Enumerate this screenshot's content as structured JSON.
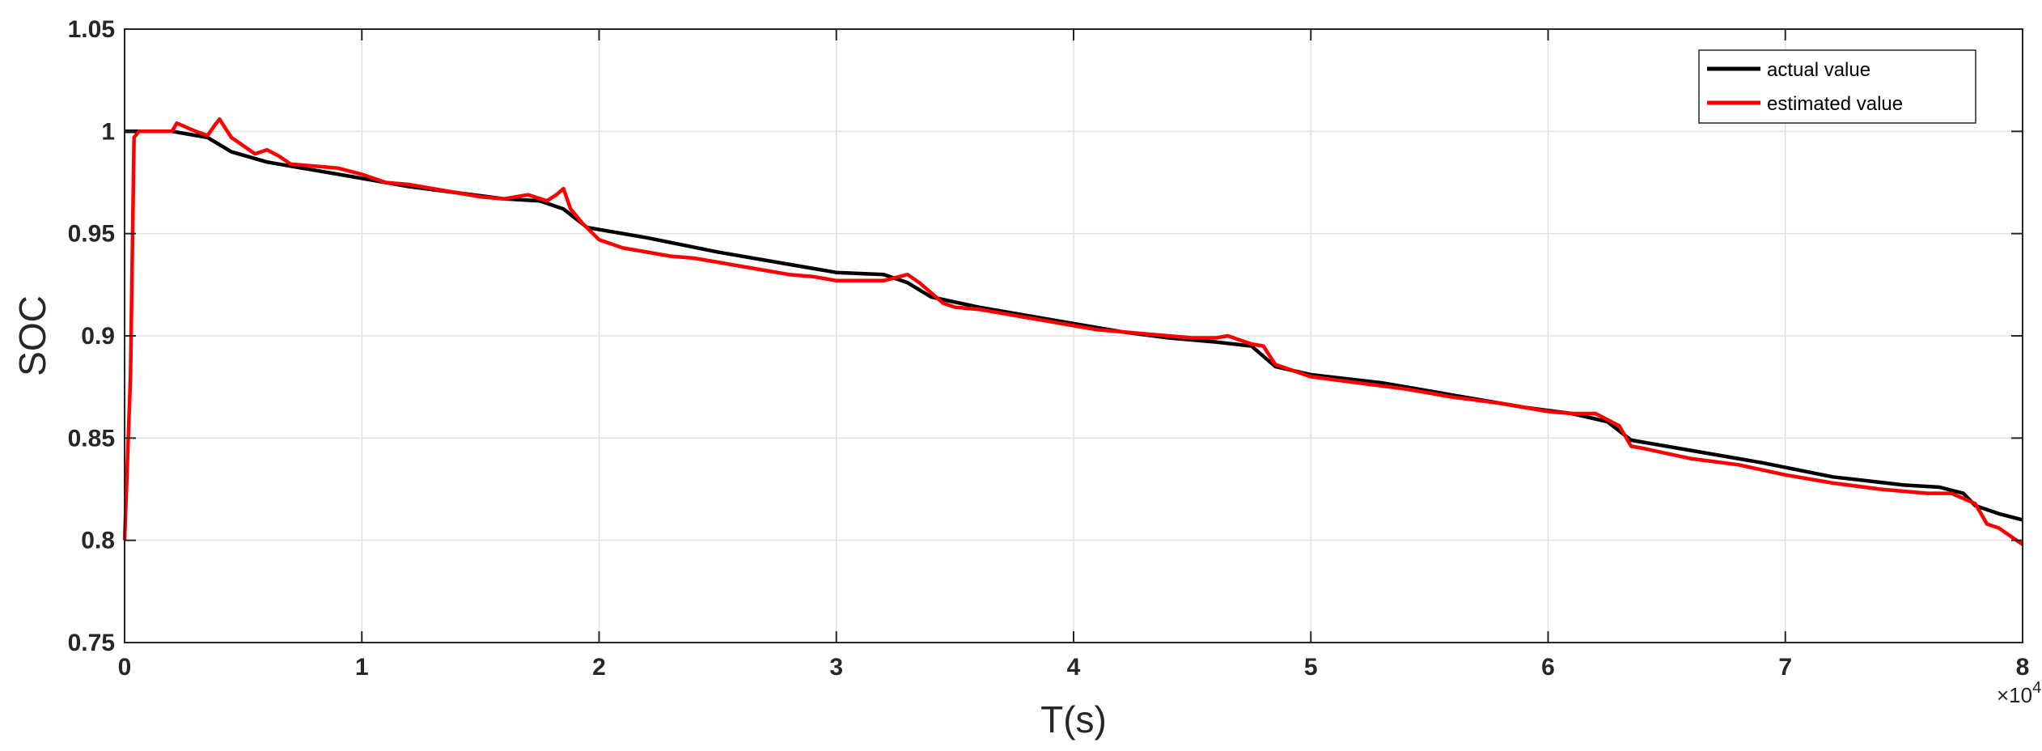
{
  "chart_data": {
    "type": "line",
    "xlabel": "T(s)",
    "ylabel": "SOC",
    "x_exponent_base": "×10",
    "x_exponent_power": "4",
    "xlim": [
      0,
      8
    ],
    "ylim": [
      0.75,
      1.05
    ],
    "x_ticks": [
      "0",
      "1",
      "2",
      "3",
      "4",
      "5",
      "6",
      "7",
      "8"
    ],
    "y_ticks": [
      "0.75",
      "0.8",
      "0.85",
      "0.9",
      "0.95",
      "1",
      "1.05"
    ],
    "grid": true,
    "legend_position": "top-right",
    "series": [
      {
        "name": "actual value",
        "color": "#000000",
        "points": [
          [
            0,
            1.0
          ],
          [
            0.2,
            1.0
          ],
          [
            0.3,
            0.998
          ],
          [
            0.35,
            0.997
          ],
          [
            0.45,
            0.99
          ],
          [
            0.6,
            0.985
          ],
          [
            0.8,
            0.981
          ],
          [
            1.0,
            0.977
          ],
          [
            1.2,
            0.973
          ],
          [
            1.4,
            0.97
          ],
          [
            1.6,
            0.967
          ],
          [
            1.75,
            0.966
          ],
          [
            1.85,
            0.962
          ],
          [
            1.95,
            0.953
          ],
          [
            2.2,
            0.948
          ],
          [
            2.5,
            0.941
          ],
          [
            2.8,
            0.935
          ],
          [
            3.0,
            0.931
          ],
          [
            3.2,
            0.93
          ],
          [
            3.3,
            0.926
          ],
          [
            3.4,
            0.919
          ],
          [
            3.6,
            0.914
          ],
          [
            3.8,
            0.91
          ],
          [
            4.0,
            0.906
          ],
          [
            4.2,
            0.902
          ],
          [
            4.4,
            0.899
          ],
          [
            4.6,
            0.897
          ],
          [
            4.75,
            0.895
          ],
          [
            4.85,
            0.885
          ],
          [
            5.0,
            0.881
          ],
          [
            5.3,
            0.877
          ],
          [
            5.6,
            0.871
          ],
          [
            5.9,
            0.865
          ],
          [
            6.1,
            0.862
          ],
          [
            6.25,
            0.858
          ],
          [
            6.35,
            0.849
          ],
          [
            6.6,
            0.844
          ],
          [
            6.9,
            0.838
          ],
          [
            7.2,
            0.831
          ],
          [
            7.5,
            0.827
          ],
          [
            7.65,
            0.826
          ],
          [
            7.75,
            0.823
          ],
          [
            7.8,
            0.817
          ],
          [
            7.9,
            0.813
          ],
          [
            8.0,
            0.81
          ]
        ]
      },
      {
        "name": "estimated value",
        "color": "#ff0000",
        "points": [
          [
            0,
            0.8
          ],
          [
            0.025,
            0.88
          ],
          [
            0.04,
            0.997
          ],
          [
            0.06,
            1.0
          ],
          [
            0.2,
            1.0
          ],
          [
            0.22,
            1.004
          ],
          [
            0.3,
            1.0
          ],
          [
            0.35,
            0.998
          ],
          [
            0.38,
            1.003
          ],
          [
            0.4,
            1.006
          ],
          [
            0.45,
            0.997
          ],
          [
            0.5,
            0.993
          ],
          [
            0.55,
            0.989
          ],
          [
            0.6,
            0.991
          ],
          [
            0.65,
            0.988
          ],
          [
            0.7,
            0.984
          ],
          [
            0.8,
            0.983
          ],
          [
            0.9,
            0.982
          ],
          [
            1.0,
            0.979
          ],
          [
            1.1,
            0.975
          ],
          [
            1.2,
            0.974
          ],
          [
            1.3,
            0.972
          ],
          [
            1.4,
            0.97
          ],
          [
            1.5,
            0.968
          ],
          [
            1.6,
            0.967
          ],
          [
            1.7,
            0.969
          ],
          [
            1.78,
            0.966
          ],
          [
            1.82,
            0.969
          ],
          [
            1.85,
            0.972
          ],
          [
            1.88,
            0.962
          ],
          [
            1.93,
            0.955
          ],
          [
            2.0,
            0.947
          ],
          [
            2.05,
            0.945
          ],
          [
            2.1,
            0.943
          ],
          [
            2.2,
            0.941
          ],
          [
            2.3,
            0.939
          ],
          [
            2.4,
            0.938
          ],
          [
            2.5,
            0.936
          ],
          [
            2.6,
            0.934
          ],
          [
            2.7,
            0.932
          ],
          [
            2.8,
            0.93
          ],
          [
            2.9,
            0.929
          ],
          [
            3.0,
            0.927
          ],
          [
            3.1,
            0.927
          ],
          [
            3.2,
            0.927
          ],
          [
            3.3,
            0.93
          ],
          [
            3.35,
            0.926
          ],
          [
            3.45,
            0.916
          ],
          [
            3.5,
            0.914
          ],
          [
            3.6,
            0.913
          ],
          [
            3.7,
            0.911
          ],
          [
            3.8,
            0.909
          ],
          [
            3.9,
            0.907
          ],
          [
            4.0,
            0.905
          ],
          [
            4.1,
            0.903
          ],
          [
            4.2,
            0.902
          ],
          [
            4.3,
            0.901
          ],
          [
            4.4,
            0.9
          ],
          [
            4.5,
            0.899
          ],
          [
            4.6,
            0.899
          ],
          [
            4.65,
            0.9
          ],
          [
            4.75,
            0.896
          ],
          [
            4.8,
            0.895
          ],
          [
            4.85,
            0.886
          ],
          [
            5.0,
            0.88
          ],
          [
            5.2,
            0.877
          ],
          [
            5.4,
            0.874
          ],
          [
            5.6,
            0.87
          ],
          [
            5.8,
            0.867
          ],
          [
            6.0,
            0.863
          ],
          [
            6.1,
            0.862
          ],
          [
            6.2,
            0.862
          ],
          [
            6.3,
            0.856
          ],
          [
            6.35,
            0.846
          ],
          [
            6.4,
            0.845
          ],
          [
            6.6,
            0.84
          ],
          [
            6.8,
            0.837
          ],
          [
            7.0,
            0.832
          ],
          [
            7.2,
            0.828
          ],
          [
            7.4,
            0.825
          ],
          [
            7.6,
            0.823
          ],
          [
            7.7,
            0.823
          ],
          [
            7.8,
            0.818
          ],
          [
            7.85,
            0.808
          ],
          [
            7.9,
            0.806
          ],
          [
            7.95,
            0.802
          ],
          [
            8.0,
            0.798
          ]
        ]
      }
    ]
  }
}
